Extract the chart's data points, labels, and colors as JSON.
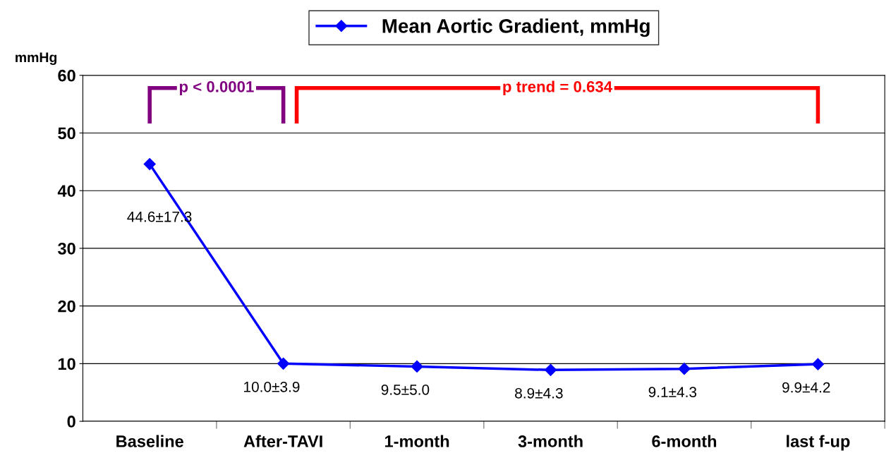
{
  "chart_data": {
    "type": "line",
    "categories": [
      "Baseline",
      "After-TAVI",
      "1-month",
      "3-month",
      "6-month",
      "last f-up"
    ],
    "series": [
      {
        "name": "Mean Aortic Gradient, mmHg",
        "color": "#0000ff",
        "values": [
          44.6,
          10.0,
          9.5,
          8.9,
          9.1,
          9.9
        ],
        "value_labels": [
          "44.6±17.3",
          "10.0±3.9",
          "9.5±5.0",
          "8.9±4.3",
          "9.1±4.3",
          "9.9±4.2"
        ]
      }
    ],
    "ylabel": "mmHg",
    "ylim": [
      0,
      60
    ],
    "yticks": [
      0,
      10,
      20,
      30,
      40,
      50,
      60
    ],
    "grid": "y",
    "legend": "top",
    "marker": "diamond",
    "line_style": "solid",
    "annotations": [
      "p < 0.0001",
      "p trend = 0.634"
    ]
  }
}
